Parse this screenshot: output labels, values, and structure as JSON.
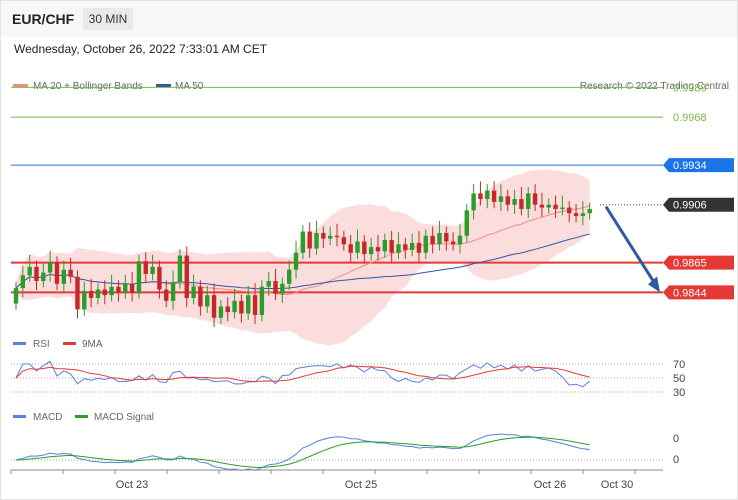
{
  "header": {
    "pair": "EUR/CHF",
    "timeframe": "30 MIN"
  },
  "timestamp": "Wednesday, October 26, 2022 7:33:01 AM CET",
  "credit": "Research © 2022 Trading Central",
  "legend": {
    "ma": "MA 20 + Bollinger Bands",
    "ma50": "MA 50"
  },
  "colors": {
    "up": "#2a9d2a",
    "down": "#c62828",
    "resistance_green": "#76b947",
    "ma50": "#2d5aa0",
    "support": "#e53935",
    "bands": "#f8c7c7",
    "arrow": "#2d5aa0",
    "price_box": "#333333",
    "key_box": "#1a73e8"
  },
  "chart_data": {
    "type": "candlestick",
    "x_ticks": [
      "Oct 23",
      "Oct 25",
      "Oct 26",
      "Oct 30"
    ],
    "y_range": [
      0.9823,
      1.0007
    ],
    "levels": [
      {
        "value": "0.9989",
        "kind": "resistance"
      },
      {
        "value": "0.9968",
        "kind": "resistance"
      },
      {
        "value": "0.9934",
        "kind": "key"
      },
      {
        "value": "0.9906",
        "kind": "price"
      },
      {
        "value": "0.9865",
        "kind": "support"
      },
      {
        "value": "0.9844",
        "kind": "support"
      }
    ],
    "forecast": {
      "from": 0.9906,
      "to": 0.9844,
      "direction": "down"
    },
    "candles": [
      [
        0.9836,
        0.9847
      ],
      [
        0.9847,
        0.9856
      ],
      [
        0.9856,
        0.9862
      ],
      [
        0.9862,
        0.9852
      ],
      [
        0.9852,
        0.9858
      ],
      [
        0.9858,
        0.9865
      ],
      [
        0.9865,
        0.985
      ],
      [
        0.985,
        0.986
      ],
      [
        0.986,
        0.9855
      ],
      [
        0.9855,
        0.9832
      ],
      [
        0.9832,
        0.9845
      ],
      [
        0.9845,
        0.984
      ],
      [
        0.984,
        0.9846
      ],
      [
        0.9846,
        0.9842
      ],
      [
        0.9842,
        0.9848
      ],
      [
        0.9848,
        0.9844
      ],
      [
        0.9844,
        0.985
      ],
      [
        0.985,
        0.9844
      ],
      [
        0.9844,
        0.9866
      ],
      [
        0.9866,
        0.9857
      ],
      [
        0.9857,
        0.9862
      ],
      [
        0.9862,
        0.9846
      ],
      [
        0.9846,
        0.9838
      ],
      [
        0.9838,
        0.9851
      ],
      [
        0.9851,
        0.987
      ],
      [
        0.987,
        0.984
      ],
      [
        0.984,
        0.9848
      ],
      [
        0.9848,
        0.9834
      ],
      [
        0.9834,
        0.9842
      ],
      [
        0.9842,
        0.9826
      ],
      [
        0.9826,
        0.9834
      ],
      [
        0.9834,
        0.983
      ],
      [
        0.983,
        0.9838
      ],
      [
        0.9838,
        0.9829
      ],
      [
        0.9829,
        0.9842
      ],
      [
        0.9842,
        0.9828
      ],
      [
        0.9828,
        0.9848
      ],
      [
        0.9848,
        0.9852
      ],
      [
        0.9852,
        0.9843
      ],
      [
        0.9843,
        0.985
      ],
      [
        0.985,
        0.986
      ],
      [
        0.986,
        0.9872
      ],
      [
        0.9872,
        0.9887
      ],
      [
        0.9887,
        0.9875
      ],
      [
        0.9875,
        0.9886
      ],
      [
        0.9886,
        0.9882
      ],
      [
        0.9882,
        0.9884
      ],
      [
        0.9884,
        0.9883
      ],
      [
        0.9883,
        0.9878
      ],
      [
        0.9878,
        0.9872
      ],
      [
        0.9872,
        0.988
      ],
      [
        0.988,
        0.9871
      ],
      [
        0.9871,
        0.9876
      ],
      [
        0.9876,
        0.9873
      ],
      [
        0.9873,
        0.9881
      ],
      [
        0.9881,
        0.9872
      ],
      [
        0.9872,
        0.9878
      ],
      [
        0.9878,
        0.9874
      ],
      [
        0.9874,
        0.9879
      ],
      [
        0.9879,
        0.9872
      ],
      [
        0.9872,
        0.9884
      ],
      [
        0.9884,
        0.9878
      ],
      [
        0.9878,
        0.9886
      ],
      [
        0.9886,
        0.988
      ],
      [
        0.988,
        0.9878
      ],
      [
        0.9878,
        0.9884
      ],
      [
        0.9884,
        0.9902
      ],
      [
        0.9902,
        0.9914
      ],
      [
        0.9914,
        0.991
      ],
      [
        0.991,
        0.9916
      ],
      [
        0.9916,
        0.9908
      ],
      [
        0.9908,
        0.9912
      ],
      [
        0.9912,
        0.9906
      ],
      [
        0.9906,
        0.991
      ],
      [
        0.991,
        0.9903
      ],
      [
        0.9903,
        0.9914
      ],
      [
        0.9914,
        0.9906
      ],
      [
        0.9906,
        0.9904
      ],
      [
        0.9904,
        0.9906
      ],
      [
        0.9906,
        0.9903
      ],
      [
        0.9903,
        0.9904
      ],
      [
        0.9904,
        0.99
      ],
      [
        0.99,
        0.9898
      ],
      [
        0.9898,
        0.99
      ],
      [
        0.99,
        0.9903
      ]
    ],
    "rsi": {
      "legend": [
        "RSI",
        "9MA"
      ],
      "ticks": [
        "70",
        "50",
        "30"
      ]
    },
    "macd": {
      "legend": [
        "MACD",
        "MACD Signal"
      ],
      "ticks": [
        "0",
        "0"
      ]
    }
  }
}
